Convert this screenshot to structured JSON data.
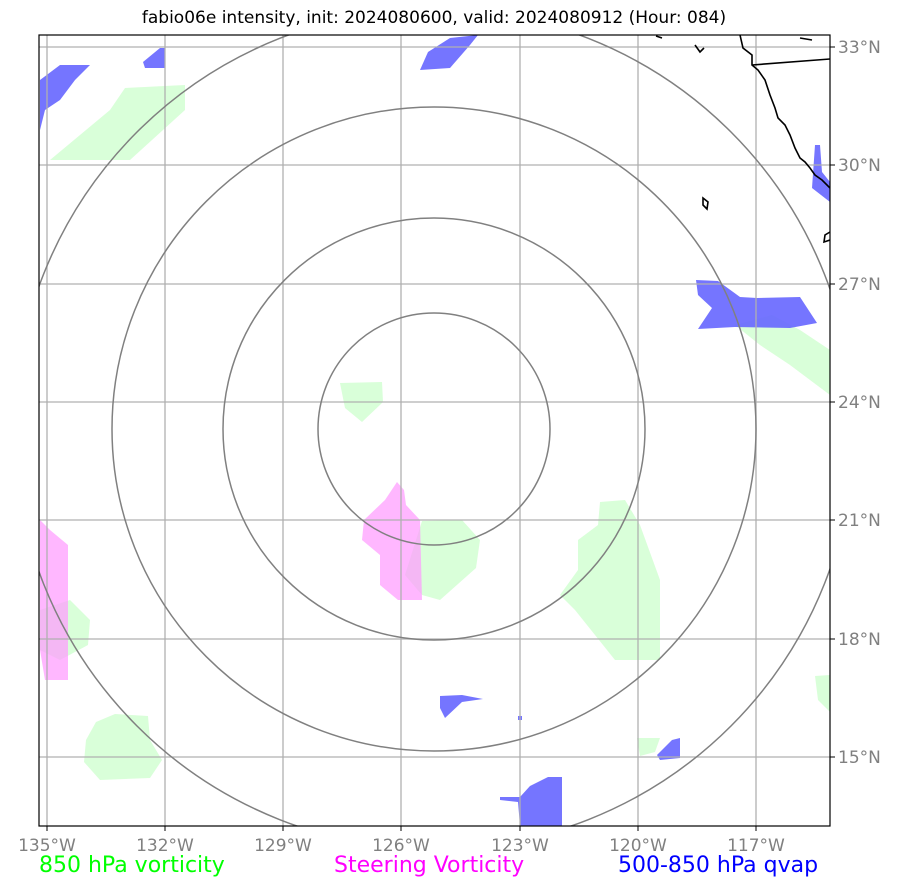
{
  "title": "fabio06e intensity, init: 2024080600, valid: 2024080912 (Hour: 084)",
  "map": {
    "longitude_ticks": [
      "135°W",
      "132°W",
      "129°W",
      "126°W",
      "123°W",
      "120°W",
      "117°W"
    ],
    "latitude_ticks": [
      "33°N",
      "30°N",
      "27°N",
      "24°N",
      "21°N",
      "18°N",
      "15°N"
    ],
    "extent": {
      "lon": [
        -135.2,
        -115.2
      ],
      "lat": [
        13.3,
        33.3
      ]
    },
    "storm_center": {
      "lon": -125.0,
      "lat": 23.3
    },
    "range_rings_count": 4,
    "grid": true,
    "coastline": "Baja California"
  },
  "legend": [
    {
      "label": "850 hPa vorticity",
      "color": "#00ff00"
    },
    {
      "label": "Steering Vorticity",
      "color": "#ff00ff"
    },
    {
      "label": "500-850 hPa qvap",
      "color": "#0000ff"
    }
  ],
  "colors": {
    "vorticity_850_fill": "#ccffcc",
    "steering_vorticity_fill": "#ffaaff",
    "qvap_fill": "#6666ff",
    "grid": "#b0b0b0",
    "rings": "#808080"
  }
}
